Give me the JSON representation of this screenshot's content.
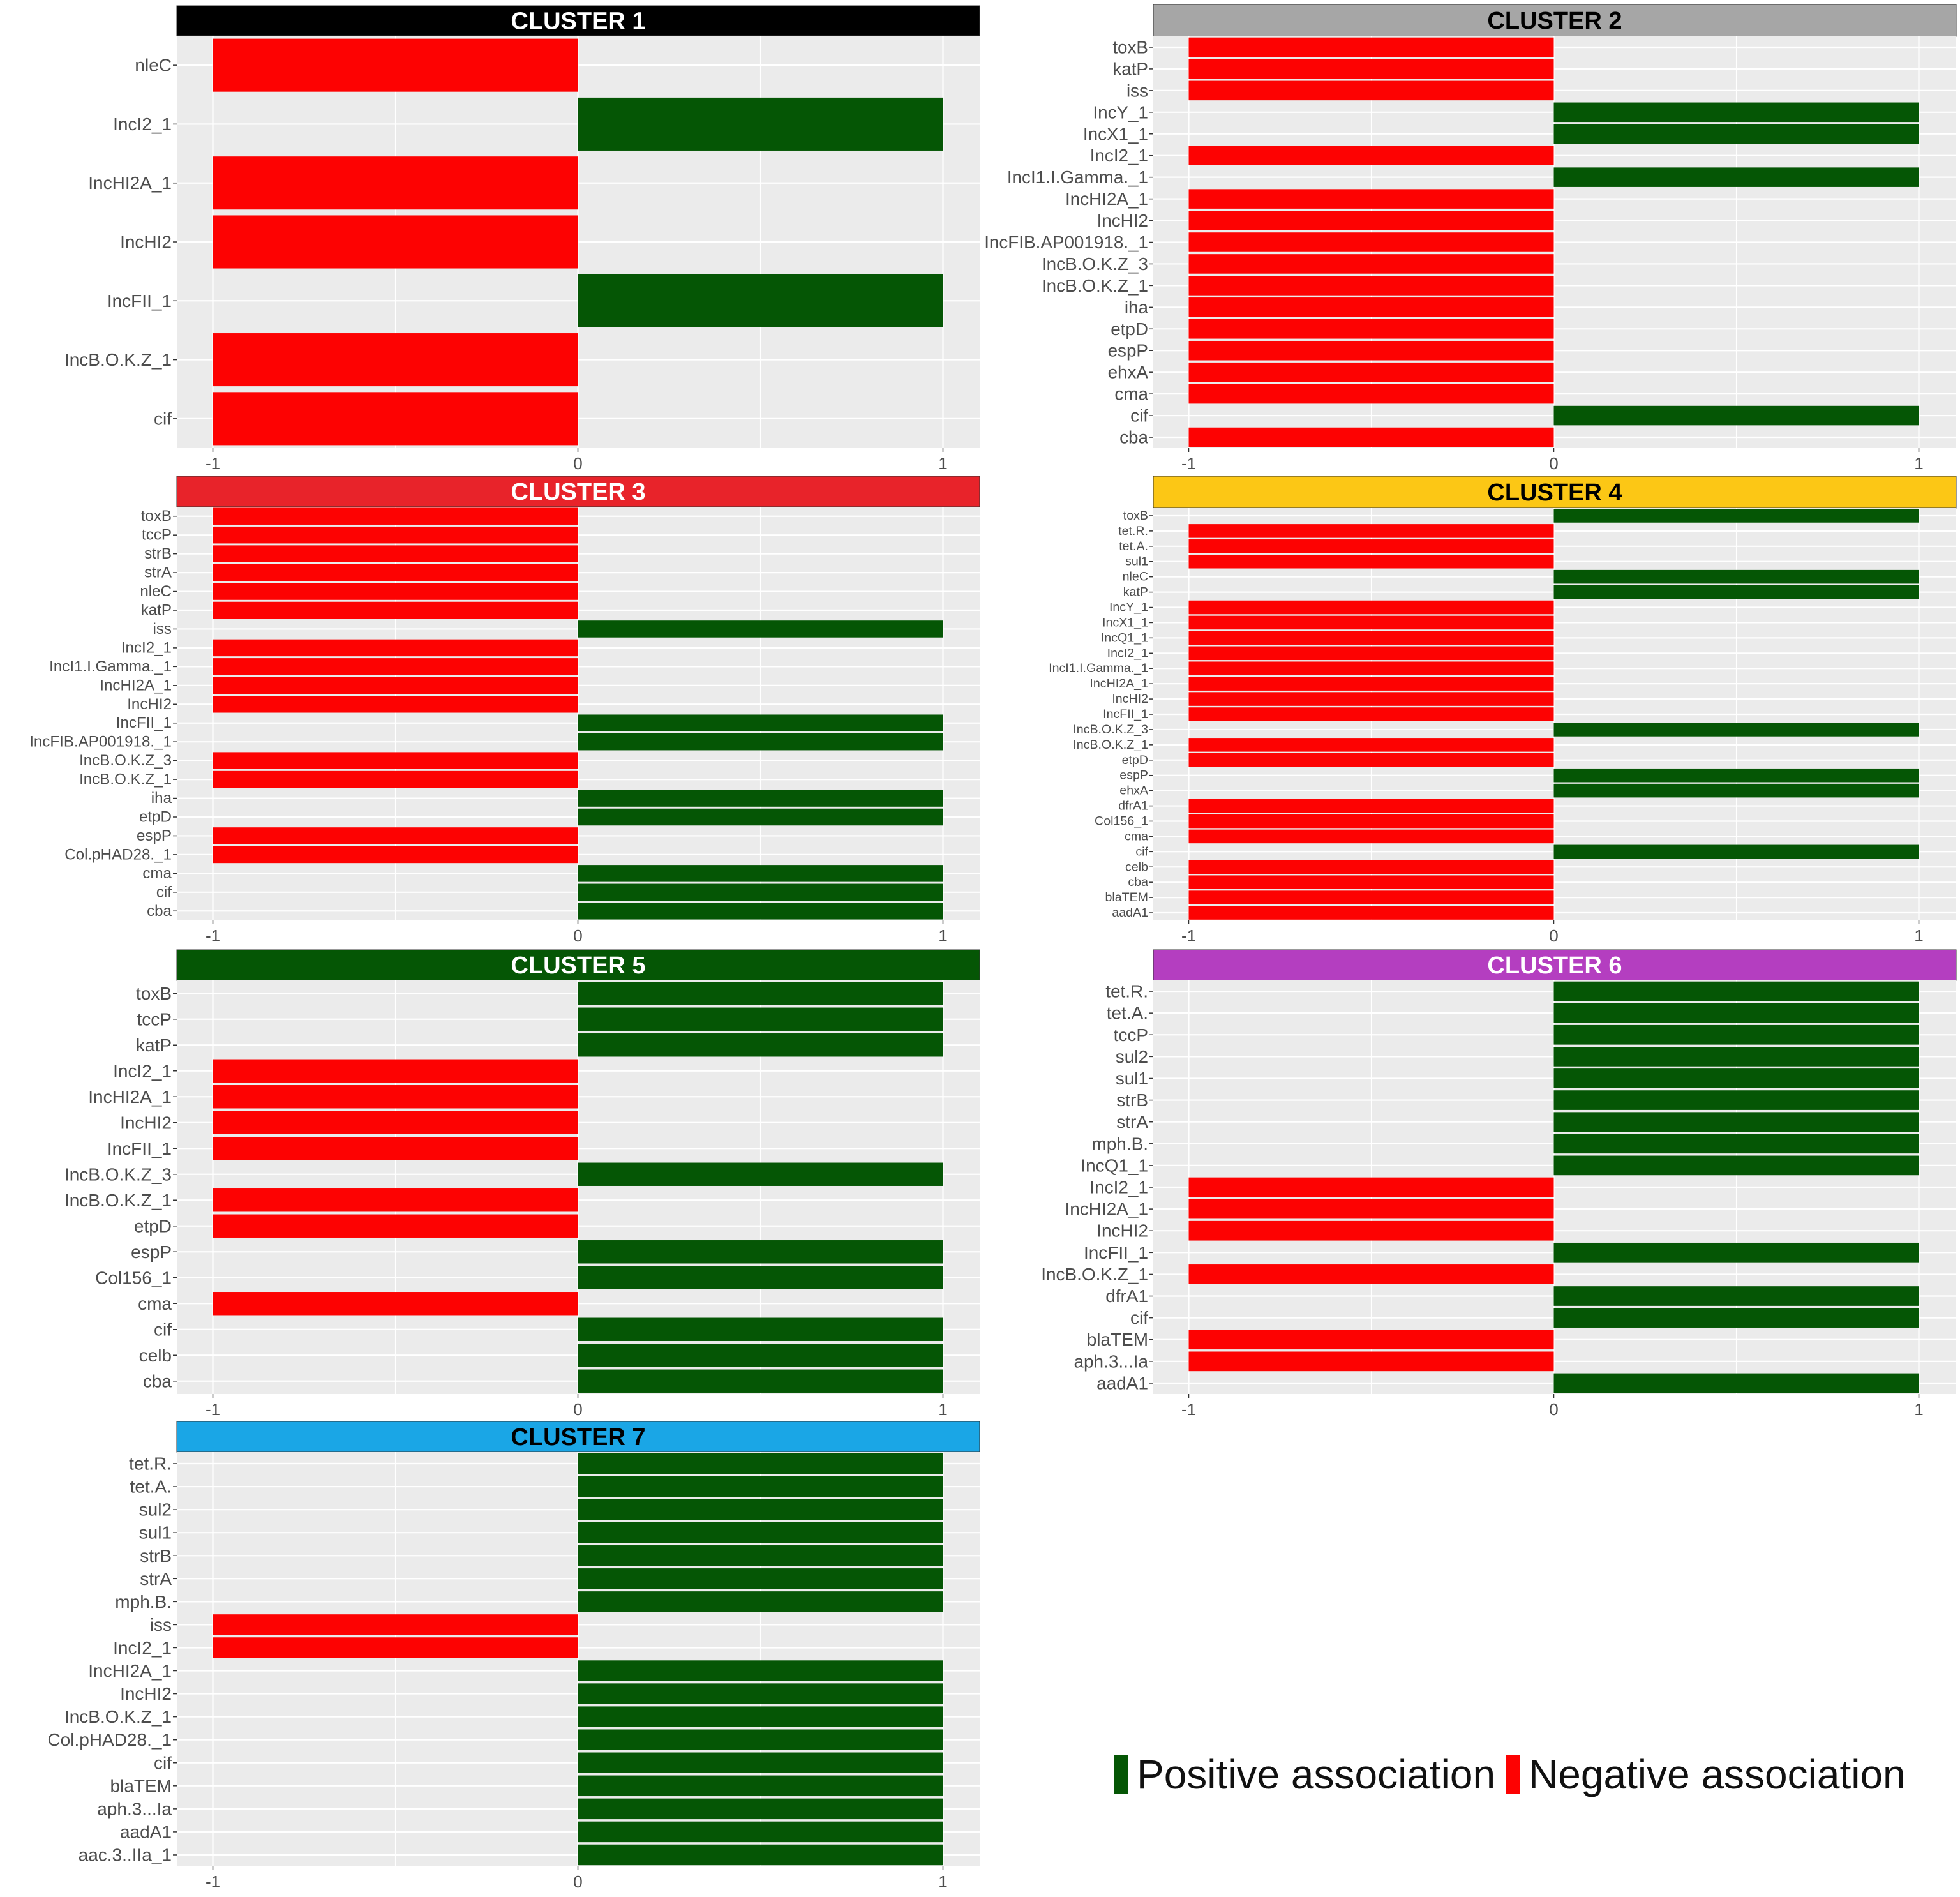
{
  "colors": {
    "positive": "#055605",
    "negative": "#fd0202",
    "panel_bg": "#ebebeb",
    "grid": "#ffffff",
    "axis_text": "#4d4d4d"
  },
  "legend": {
    "items": [
      {
        "label": "Positive association",
        "color": "#055605"
      },
      {
        "label": "Negative association",
        "color": "#fd0202"
      }
    ]
  },
  "chart_data": [
    {
      "type": "bar",
      "orientation": "horizontal",
      "title": "CLUSTER 1",
      "strip_color": "#000000",
      "title_color": "#ffffff",
      "xlim": [
        -1,
        1
      ],
      "xticks": [
        "-1",
        "0",
        "1"
      ],
      "categories": [
        "nleC",
        "IncI2_1",
        "IncHI2A_1",
        "IncHI2",
        "IncFII_1",
        "IncB.O.K.Z_1",
        "cif"
      ],
      "values": [
        -1,
        1,
        -1,
        -1,
        1,
        -1,
        -1
      ]
    },
    {
      "type": "bar",
      "orientation": "horizontal",
      "title": "CLUSTER 2",
      "strip_color": "#a6a6a6",
      "title_color": "#000000",
      "xlim": [
        -1,
        1
      ],
      "xticks": [
        "-1",
        "0",
        "1"
      ],
      "categories": [
        "toxB",
        "katP",
        "iss",
        "IncY_1",
        "IncX1_1",
        "IncI2_1",
        "IncI1.I.Gamma._1",
        "IncHI2A_1",
        "IncHI2",
        "IncFIB.AP001918._1",
        "IncB.O.K.Z_3",
        "IncB.O.K.Z_1",
        "iha",
        "etpD",
        "espP",
        "ehxA",
        "cma",
        "cif",
        "cba"
      ],
      "values": [
        -1,
        -1,
        -1,
        1,
        1,
        -1,
        1,
        -1,
        -1,
        -1,
        -1,
        -1,
        -1,
        -1,
        -1,
        -1,
        -1,
        1,
        -1
      ]
    },
    {
      "type": "bar",
      "orientation": "horizontal",
      "title": "CLUSTER 3",
      "strip_color": "#e8232a",
      "title_color": "#ffffff",
      "xlim": [
        -1,
        1
      ],
      "xticks": [
        "-1",
        "0",
        "1"
      ],
      "categories": [
        "toxB",
        "tccP",
        "strB",
        "strA",
        "nleC",
        "katP",
        "iss",
        "IncI2_1",
        "IncI1.I.Gamma._1",
        "IncHI2A_1",
        "IncHI2",
        "IncFII_1",
        "IncFIB.AP001918._1",
        "IncB.O.K.Z_3",
        "IncB.O.K.Z_1",
        "iha",
        "etpD",
        "espP",
        "Col.pHAD28._1",
        "cma",
        "cif",
        "cba"
      ],
      "values": [
        -1,
        -1,
        -1,
        -1,
        -1,
        -1,
        1,
        -1,
        -1,
        -1,
        -1,
        1,
        1,
        -1,
        -1,
        1,
        1,
        -1,
        -1,
        1,
        1,
        1
      ]
    },
    {
      "type": "bar",
      "orientation": "horizontal",
      "title": "CLUSTER 4",
      "strip_color": "#fcc715",
      "title_color": "#000000",
      "xlim": [
        -1,
        1
      ],
      "xticks": [
        "-1",
        "0",
        "1"
      ],
      "categories": [
        "toxB",
        "tet.R.",
        "tet.A.",
        "sul1",
        "nleC",
        "katP",
        "IncY_1",
        "IncX1_1",
        "IncQ1_1",
        "IncI2_1",
        "IncI1.I.Gamma._1",
        "IncHI2A_1",
        "IncHI2",
        "IncFII_1",
        "IncB.O.K.Z_3",
        "IncB.O.K.Z_1",
        "etpD",
        "espP",
        "ehxA",
        "dfrA1",
        "Col156_1",
        "cma",
        "cif",
        "celb",
        "cba",
        "blaTEM",
        "aadA1"
      ],
      "values": [
        1,
        -1,
        -1,
        -1,
        1,
        1,
        -1,
        -1,
        -1,
        -1,
        -1,
        -1,
        -1,
        -1,
        1,
        -1,
        -1,
        1,
        1,
        -1,
        -1,
        -1,
        1,
        -1,
        -1,
        -1,
        -1
      ]
    },
    {
      "type": "bar",
      "orientation": "horizontal",
      "title": "CLUSTER 5",
      "strip_color": "#055605",
      "title_color": "#ffffff",
      "xlim": [
        -1,
        1
      ],
      "xticks": [
        "-1",
        "0",
        "1"
      ],
      "categories": [
        "toxB",
        "tccP",
        "katP",
        "IncI2_1",
        "IncHI2A_1",
        "IncHI2",
        "IncFII_1",
        "IncB.O.K.Z_3",
        "IncB.O.K.Z_1",
        "etpD",
        "espP",
        "Col156_1",
        "cma",
        "cif",
        "celb",
        "cba"
      ],
      "values": [
        1,
        1,
        1,
        -1,
        -1,
        -1,
        -1,
        1,
        -1,
        -1,
        1,
        1,
        -1,
        1,
        1,
        1
      ]
    },
    {
      "type": "bar",
      "orientation": "horizontal",
      "title": "CLUSTER 6",
      "strip_color": "#b43ec0",
      "title_color": "#ffffff",
      "xlim": [
        -1,
        1
      ],
      "xticks": [
        "-1",
        "0",
        "1"
      ],
      "categories": [
        "tet.R.",
        "tet.A.",
        "tccP",
        "sul2",
        "sul1",
        "strB",
        "strA",
        "mph.B.",
        "IncQ1_1",
        "IncI2_1",
        "IncHI2A_1",
        "IncHI2",
        "IncFII_1",
        "IncB.O.K.Z_1",
        "dfrA1",
        "cif",
        "blaTEM",
        "aph.3...Ia",
        "aadA1"
      ],
      "values": [
        1,
        1,
        1,
        1,
        1,
        1,
        1,
        1,
        1,
        -1,
        -1,
        -1,
        1,
        -1,
        1,
        1,
        -1,
        -1,
        1
      ]
    },
    {
      "type": "bar",
      "orientation": "horizontal",
      "title": "CLUSTER 7",
      "strip_color": "#1aa6e6",
      "title_color": "#000000",
      "xlim": [
        -1,
        1
      ],
      "xticks": [
        "-1",
        "0",
        "1"
      ],
      "categories": [
        "tet.R.",
        "tet.A.",
        "sul2",
        "sul1",
        "strB",
        "strA",
        "mph.B.",
        "iss",
        "IncI2_1",
        "IncHI2A_1",
        "IncHI2",
        "IncB.O.K.Z_1",
        "Col.pHAD28._1",
        "cif",
        "blaTEM",
        "aph.3...Ia",
        "aadA1",
        "aac.3..IIa_1"
      ],
      "values": [
        1,
        1,
        1,
        1,
        1,
        1,
        1,
        -1,
        -1,
        1,
        1,
        1,
        1,
        1,
        1,
        1,
        1,
        1
      ]
    }
  ]
}
